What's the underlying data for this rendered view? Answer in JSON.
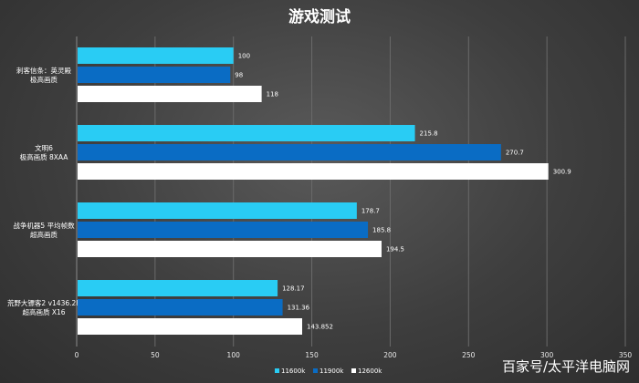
{
  "chart_data": {
    "type": "bar",
    "orientation": "horizontal",
    "title": "游戏测试",
    "categories": [
      [
        "刺客信条：英灵殿",
        "极高画质"
      ],
      [
        "文明6",
        "极高画质 8XAA"
      ],
      [
        "战争机器5 平均帧数",
        "超高画质"
      ],
      [
        "荒野大镖客2 v1436.28",
        "超高画质 X16"
      ]
    ],
    "series": [
      {
        "name": "11600k",
        "color": "#29ccf4",
        "values": [
          100,
          215.8,
          178.7,
          128.17
        ],
        "labels": [
          "100",
          "215.8",
          "178.7",
          "128.17"
        ]
      },
      {
        "name": "11900k",
        "color": "#0a6cc4",
        "values": [
          98,
          270.7,
          185.8,
          131.36
        ],
        "labels": [
          "98",
          "270.7",
          "185.8",
          "131.36"
        ]
      },
      {
        "name": "12600k",
        "color": "#ffffff",
        "values": [
          118,
          300.9,
          194.5,
          143.852
        ],
        "labels": [
          "118",
          "300.9",
          "194.5",
          "143.852"
        ]
      }
    ],
    "xlim": [
      0,
      350
    ],
    "xticks": [
      0,
      50,
      100,
      150,
      200,
      250,
      300,
      350
    ],
    "grid": true,
    "legend_position": "bottom-center"
  },
  "watermark": "百家号/太平洋电脑网"
}
